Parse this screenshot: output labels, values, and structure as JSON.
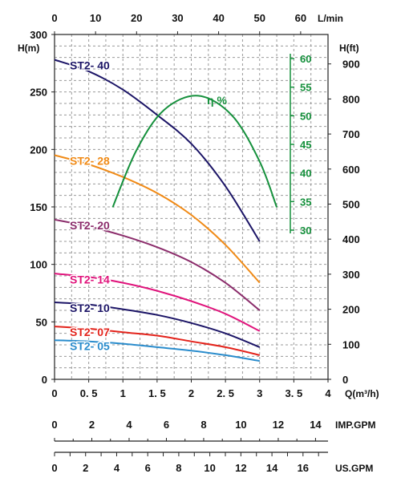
{
  "chart_data": {
    "type": "line",
    "x_axis_bottom": {
      "title": "Q(m³/h)",
      "ticks": [
        "0",
        "0. 5",
        "1",
        "1. 5",
        "2",
        "2. 5",
        "3",
        "3. 5",
        "4"
      ],
      "range": [
        0,
        4
      ]
    },
    "x_axis_top": {
      "title": "L/min",
      "ticks": [
        "0",
        "10",
        "20",
        "30",
        "40",
        "50",
        "60"
      ],
      "range": [
        0,
        66.67
      ]
    },
    "y_axis_left": {
      "title": "H(m)",
      "ticks": [
        "0",
        "50",
        "100",
        "150",
        "200",
        "250",
        "300"
      ],
      "range": [
        0,
        300
      ]
    },
    "y_axis_right": {
      "title": "H(ft)",
      "ticks": [
        "0",
        "100",
        "200",
        "300",
        "400",
        "500",
        "600",
        "700",
        "800",
        "900"
      ],
      "range": [
        0,
        984
      ]
    },
    "efficiency_axis": {
      "title": "η %",
      "ticks": [
        "30",
        "35",
        "40",
        "45",
        "50",
        "55",
        "60"
      ],
      "range": [
        30,
        60
      ],
      "color": "#15903c"
    },
    "imp_gpm_axis": {
      "title": "IMP.GPM",
      "ticks": [
        "0",
        "2",
        "4",
        "6",
        "8",
        "10",
        "12",
        "14"
      ],
      "range": [
        0,
        14.67
      ]
    },
    "us_gpm_axis": {
      "title": "US.GPM",
      "ticks": [
        "0",
        "2",
        "4",
        "6",
        "8",
        "10",
        "12",
        "14",
        "16"
      ],
      "range": [
        0,
        17.61
      ]
    },
    "grid": true,
    "series": [
      {
        "name": "ST2- 40",
        "color": "#1b1466",
        "x": [
          0,
          0.5,
          1,
          1.5,
          2,
          2.5,
          3
        ],
        "y": [
          278,
          268,
          252,
          230,
          205,
          168,
          120
        ]
      },
      {
        "name": "ST2- 28",
        "color": "#f08a16",
        "x": [
          0,
          0.5,
          1,
          1.5,
          2,
          2.5,
          3
        ],
        "y": [
          195,
          187,
          176,
          162,
          143,
          117,
          84
        ]
      },
      {
        "name": "ST2- 20",
        "color": "#8b2c6b",
        "x": [
          0,
          0.5,
          1,
          1.5,
          2,
          2.5,
          3
        ],
        "y": [
          139,
          133,
          125,
          115,
          102,
          84,
          60
        ]
      },
      {
        "name": "ST2- 14",
        "color": "#e0147c",
        "x": [
          0,
          0.5,
          1,
          1.5,
          2,
          2.5,
          3
        ],
        "y": [
          92,
          89,
          84,
          77,
          68,
          57,
          42
        ]
      },
      {
        "name": "ST2- 10",
        "color": "#1b1466",
        "x": [
          0,
          0.5,
          1,
          1.5,
          2,
          2.5,
          3
        ],
        "y": [
          67,
          65,
          61,
          56,
          49,
          40,
          28
        ]
      },
      {
        "name": "ST2- 07",
        "color": "#e3231b",
        "x": [
          0,
          0.5,
          1,
          1.5,
          2,
          2.5,
          3
        ],
        "y": [
          46,
          44,
          41,
          38,
          33,
          28,
          21
        ]
      },
      {
        "name": "ST2- 05",
        "color": "#2a8ccc",
        "x": [
          0,
          0.5,
          1,
          1.5,
          2,
          2.5,
          3
        ],
        "y": [
          34,
          33,
          31,
          28,
          25,
          21,
          16
        ]
      }
    ],
    "efficiency_curve": {
      "name": "η %",
      "color": "#15903c",
      "x": [
        0.85,
        1.2,
        1.6,
        2.1,
        2.6,
        3.0,
        3.25
      ],
      "y": [
        34,
        44,
        51,
        53.5,
        50,
        42,
        34
      ]
    }
  }
}
